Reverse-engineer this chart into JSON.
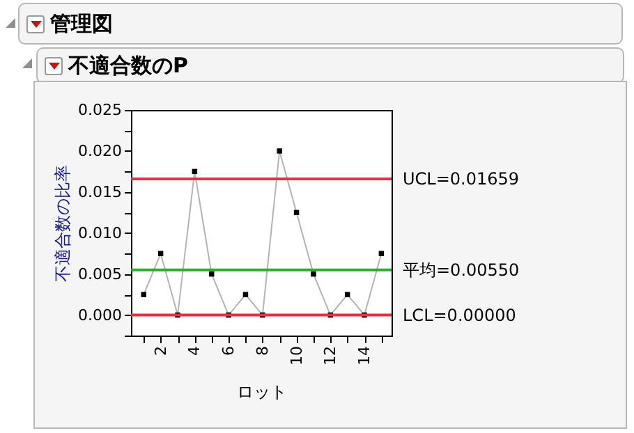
{
  "chart_data": {
    "type": "line",
    "title": "管理図",
    "subtitle": "不適合数のP",
    "xlabel": "ロット",
    "ylabel": "不適合数の比率",
    "x": [
      1,
      2,
      3,
      4,
      5,
      6,
      7,
      8,
      9,
      10,
      11,
      12,
      13,
      14,
      15
    ],
    "series": [
      {
        "color": "#b4b4b4",
        "values": [
          0.0025,
          0.0075,
          0,
          0.0175,
          0.005,
          0,
          0.0025,
          0,
          0.02,
          0.0125,
          0.005,
          0,
          0.0025,
          0,
          0.0075
        ]
      }
    ],
    "xlim": [
      0.25,
      15.6
    ],
    "xticks": [
      {
        "value": 1,
        "label": null
      },
      2,
      {
        "value": 3,
        "label": null
      },
      4,
      {
        "value": 5,
        "label": null
      },
      6,
      {
        "value": 7,
        "label": null
      },
      8,
      {
        "value": 9,
        "label": null
      },
      10,
      {
        "value": 11,
        "label": null
      },
      12,
      {
        "value": 13,
        "label": null
      },
      14,
      {
        "value": 15,
        "label": null
      }
    ],
    "ylim": [
      -0.0025,
      0.025
    ],
    "yticks": [
      {
        "value": -0.0025,
        "label": null
      },
      {
        "value": 0,
        "label": "0.000"
      },
      {
        "value": 0.0025,
        "label": null
      },
      {
        "value": 0.005,
        "label": "0.005"
      },
      {
        "value": 0.0075,
        "label": null
      },
      {
        "value": 0.01,
        "label": "0.010"
      },
      {
        "value": 0.0125,
        "label": null
      },
      {
        "value": 0.015,
        "label": "0.015"
      },
      {
        "value": 0.0175,
        "label": null
      },
      {
        "value": 0.02,
        "label": "0.020"
      },
      {
        "value": 0.0225,
        "label": null
      },
      {
        "value": 0.025,
        "label": "0.025"
      }
    ],
    "ref_lines": [
      {
        "axis": "y",
        "value": 0.01659,
        "label": "UCL=0.01659",
        "color": "#e8303f"
      },
      {
        "axis": "y",
        "value": 0.0055,
        "label": "平均=0.00550",
        "color": "#22b422"
      },
      {
        "axis": "y",
        "value": 0,
        "label": "LCL=0.00000",
        "color": "#e8303f"
      }
    ],
    "marker": "square",
    "line_style": "solid",
    "grid": false
  }
}
